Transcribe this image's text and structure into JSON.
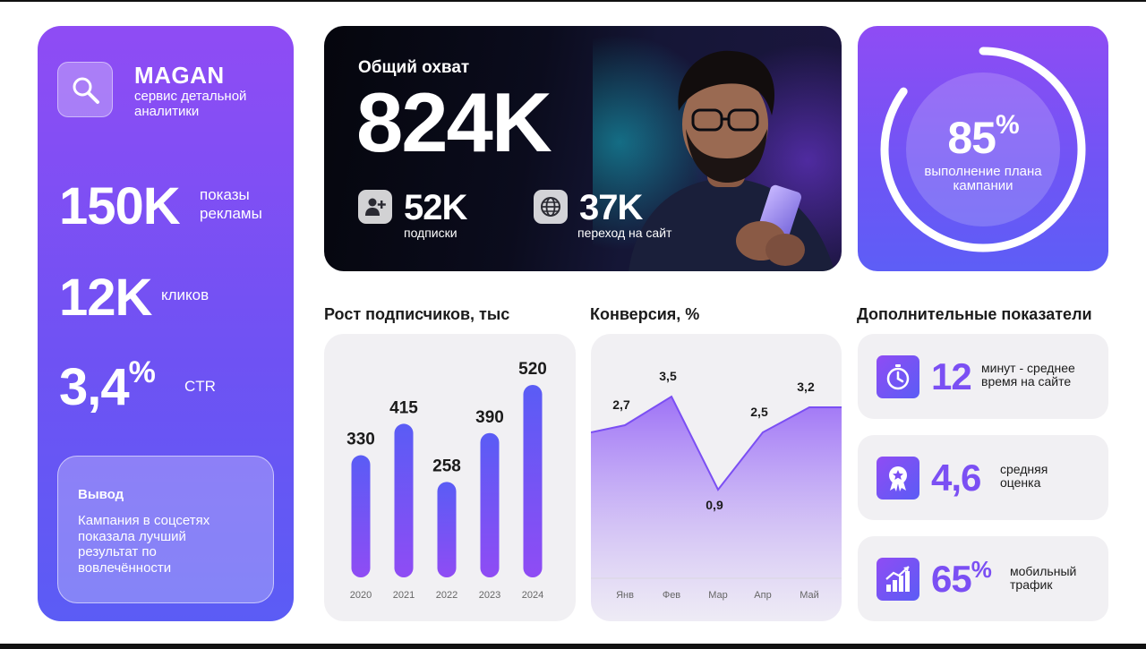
{
  "brand": {
    "name": "MAGAN",
    "subtitle": "сервис детальной аналитики"
  },
  "left_kpis": [
    {
      "value": "150K",
      "label": "показы рекламы"
    },
    {
      "value": "12K",
      "label": "кликов"
    },
    {
      "value": "3,4",
      "suffix": "%",
      "label": "CTR"
    }
  ],
  "summary": {
    "title": "Вывод",
    "text": "Кампания в соцсетях показала лучший результат по вовлечённости"
  },
  "hero": {
    "title": "Общий охват",
    "value": "824K",
    "stats": [
      {
        "value": "52K",
        "label": "подписки",
        "icon": "add-user-icon"
      },
      {
        "value": "37K",
        "label": "переход на сайт",
        "icon": "globe-icon"
      }
    ]
  },
  "gauge": {
    "value": "85",
    "suffix": "%",
    "percent": 85,
    "label": "выполнение плана кампании"
  },
  "sections": {
    "growth": "Рост подписчиков, тыс",
    "conversion": "Конверсия, %",
    "extra": "Дополнительные показатели"
  },
  "chart_data": [
    {
      "type": "bar",
      "title": "Рост подписчиков, тыс",
      "categories": [
        "2020",
        "2021",
        "2022",
        "2023",
        "2024"
      ],
      "values": [
        330,
        415,
        258,
        390,
        520
      ],
      "value_labels": [
        "330",
        "415",
        "258",
        "390",
        "520"
      ],
      "ylim": [
        0,
        520
      ]
    },
    {
      "type": "area",
      "title": "Конверсия, %",
      "categories": [
        "Янв",
        "Фев",
        "Мар",
        "Апр",
        "Май"
      ],
      "values": [
        2.7,
        3.5,
        0.9,
        2.5,
        3.2
      ],
      "value_labels": [
        "2,7",
        "3,5",
        "0,9",
        "2,5",
        "3,2"
      ],
      "ylim": [
        0,
        5
      ]
    }
  ],
  "metrics": [
    {
      "value": "12",
      "suffix": "",
      "label": "минут - среднее время на сайте",
      "icon": "stopwatch-icon"
    },
    {
      "value": "4,6",
      "suffix": "",
      "label": "средняя оценка",
      "icon": "award-badge-icon"
    },
    {
      "value": "65",
      "suffix": "%",
      "label": "мобильный трафик",
      "icon": "bar-chart-icon"
    }
  ],
  "colors": {
    "accent_top": "#8f4cf4",
    "accent_bottom": "#5b5cf5",
    "metric_text": "#7b4ff3",
    "card_bg": "#f1f0f3"
  }
}
